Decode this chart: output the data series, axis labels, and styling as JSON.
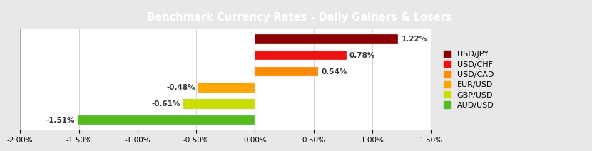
{
  "title": "Benchmark Currency Rates - Daily Gainers & Losers",
  "categories": [
    "USD/JPY",
    "USD/CHF",
    "USD/CAD",
    "EUR/USD",
    "GBP/USD",
    "AUD/USD"
  ],
  "values": [
    1.22,
    0.78,
    0.54,
    -0.48,
    -0.61,
    -1.51
  ],
  "colors": [
    "#8B0000",
    "#EE1111",
    "#FF8C00",
    "#FFA500",
    "#CCDD00",
    "#55BB22"
  ],
  "xlim": [
    -2.0,
    1.5
  ],
  "xticks": [
    -2.0,
    -1.5,
    -1.0,
    -0.5,
    0.0,
    0.5,
    1.0,
    1.5
  ],
  "bar_height": 0.6,
  "title_fontsize": 10.5,
  "tick_fontsize": 7.5,
  "label_fontsize": 7.5,
  "legend_fontsize": 8,
  "bg_color": "#E8E8E8",
  "title_bg": "#808080",
  "title_color": "#FFFFFF",
  "plot_bg": "#FFFFFF"
}
